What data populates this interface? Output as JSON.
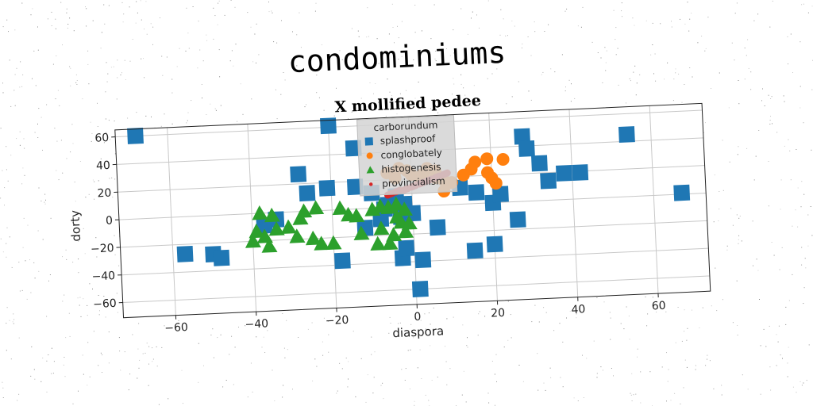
{
  "suptitle": "condominiums",
  "chart_data": {
    "type": "scatter",
    "title": "X mollified pedee",
    "xlabel": "diaspora",
    "ylabel": "dorty",
    "xlim": [
      -73,
      73
    ],
    "ylim": [
      -71,
      65
    ],
    "xticks": [
      -60,
      -40,
      -20,
      0,
      20,
      40,
      60
    ],
    "yticks": [
      -60,
      -40,
      -20,
      0,
      20,
      40,
      60
    ],
    "grid": true,
    "legend": {
      "title": "carborundum",
      "placement": "top-center"
    },
    "series": [
      {
        "name": "splashproof",
        "marker": "square",
        "color": "#1f77b4",
        "points": [
          [
            -68,
            60
          ],
          [
            -20,
            61
          ],
          [
            -14,
            44
          ],
          [
            -28,
            27
          ],
          [
            -26,
            13
          ],
          [
            -21,
            16
          ],
          [
            -14,
            16
          ],
          [
            -10,
            11
          ],
          [
            -4,
            8
          ],
          [
            -6,
            2
          ],
          [
            -12,
            -14
          ],
          [
            -34,
            -5
          ],
          [
            -37,
            -9
          ],
          [
            -50,
            -28
          ],
          [
            -57,
            -27
          ],
          [
            -48,
            -31
          ],
          [
            -18,
            -37
          ],
          [
            -3,
            -37
          ],
          [
            -2,
            -30
          ],
          [
            2,
            -39
          ],
          [
            6,
            -16
          ],
          [
            1,
            -60
          ],
          [
            15,
            -34
          ],
          [
            20,
            -30
          ],
          [
            12,
            12
          ],
          [
            16,
            8
          ],
          [
            20,
            0
          ],
          [
            22,
            6
          ],
          [
            26,
            -13
          ],
          [
            28,
            47
          ],
          [
            29,
            38
          ],
          [
            32,
            27
          ],
          [
            34,
            14
          ],
          [
            38,
            19
          ],
          [
            42,
            19
          ],
          [
            54,
            45
          ],
          [
            67,
            1
          ],
          [
            -2,
            2
          ],
          [
            -7,
            -1
          ],
          [
            -3,
            -7
          ],
          [
            0,
            -5
          ],
          [
            -8,
            -8
          ]
        ]
      },
      {
        "name": "conglobately",
        "marker": "circle",
        "color": "#ff7f0e",
        "points": [
          [
            -4,
            21
          ],
          [
            0,
            23
          ],
          [
            3,
            23
          ],
          [
            6,
            20
          ],
          [
            8,
            18
          ],
          [
            8,
            10
          ],
          [
            10,
            16
          ],
          [
            13,
            21
          ],
          [
            15,
            25
          ],
          [
            16,
            30
          ],
          [
            19,
            32
          ],
          [
            23,
            31
          ],
          [
            19,
            22
          ],
          [
            20,
            18
          ],
          [
            21,
            14
          ],
          [
            -6,
            25
          ],
          [
            -1,
            26
          ],
          [
            4,
            27
          ],
          [
            -3,
            28
          ],
          [
            2,
            21
          ],
          [
            6,
            25
          ]
        ]
      },
      {
        "name": "histogenesis",
        "marker": "triangle",
        "color": "#2ca02c",
        "points": [
          [
            -38,
            0
          ],
          [
            -35,
            -2
          ],
          [
            -27,
            0
          ],
          [
            -24,
            2
          ],
          [
            -18,
            1
          ],
          [
            -16,
            -4
          ],
          [
            -14,
            -5
          ],
          [
            -10,
            -1
          ],
          [
            -8,
            1
          ],
          [
            -6,
            0
          ],
          [
            -4,
            2
          ],
          [
            -2,
            -2
          ],
          [
            -39,
            -13
          ],
          [
            -37,
            -17
          ],
          [
            -34,
            -12
          ],
          [
            -31,
            -11
          ],
          [
            -29,
            -18
          ],
          [
            -25,
            -20
          ],
          [
            -23,
            -24
          ],
          [
            -20,
            -24
          ],
          [
            -13,
            -18
          ],
          [
            -8,
            -15
          ],
          [
            -5,
            -20
          ],
          [
            -3,
            -11
          ],
          [
            -1,
            -12
          ],
          [
            -2,
            -18
          ],
          [
            -36,
            -24
          ],
          [
            -40,
            -20
          ],
          [
            -9,
            -26
          ],
          [
            -4,
            -7
          ],
          [
            -28,
            -5
          ],
          [
            -6,
            -26
          ]
        ]
      },
      {
        "name": "provincialism",
        "marker": "circle-small",
        "color": "#d62728",
        "points": [
          [
            -6,
            9
          ],
          [
            -5,
            10
          ],
          [
            -4,
            11
          ],
          [
            -3,
            12
          ],
          [
            -2,
            12
          ],
          [
            -1,
            13
          ],
          [
            0,
            14
          ],
          [
            1,
            15
          ],
          [
            2,
            16
          ],
          [
            3,
            17
          ],
          [
            4,
            18
          ],
          [
            5,
            19
          ],
          [
            6,
            20
          ],
          [
            7,
            21
          ],
          [
            8,
            22
          ],
          [
            9,
            23
          ],
          [
            -5.5,
            9.5
          ],
          [
            -3.5,
            11.5
          ],
          [
            -1.5,
            12.5
          ],
          [
            0.5,
            14.5
          ],
          [
            2.5,
            16.5
          ],
          [
            4.5,
            18.5
          ],
          [
            6.5,
            20.5
          ],
          [
            8.5,
            22.5
          ]
        ]
      }
    ]
  }
}
